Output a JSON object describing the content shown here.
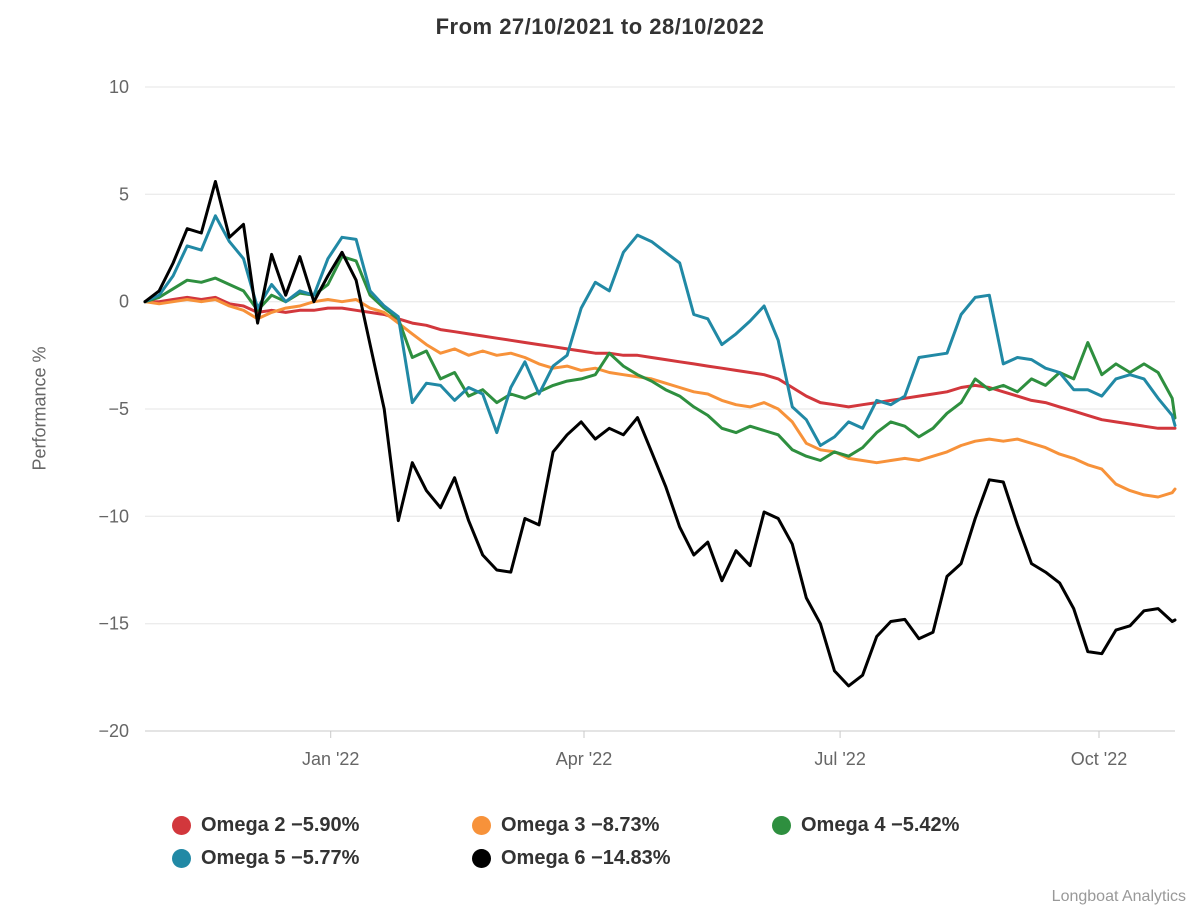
{
  "credits": "Longboat Analytics",
  "chart_data": {
    "type": "line",
    "title": "From 27/10/2021 to 28/10/2022",
    "xlabel": "",
    "ylabel": "Performance %",
    "ylim": [
      -20,
      10
    ],
    "grid": true,
    "legend_position": "bottom",
    "grid_color": "#e6e6e6",
    "axis_color": "#c9c9c9",
    "tick_text_color": "#666666",
    "yticks": [
      10,
      5,
      0,
      -5,
      -10,
      -15,
      -20
    ],
    "ytick_labels": [
      "10",
      "5",
      "0",
      "−5",
      "−10",
      "−15",
      "−20"
    ],
    "x_unit": "days since 27/10/2021",
    "x_range_days": [
      0,
      366
    ],
    "xticks": [
      {
        "day": 66,
        "label": "Jan '22"
      },
      {
        "day": 156,
        "label": "Apr '22"
      },
      {
        "day": 247,
        "label": "Jul '22"
      },
      {
        "day": 339,
        "label": "Oct '22"
      }
    ],
    "x_days": [
      0,
      5,
      10,
      15,
      20,
      25,
      30,
      35,
      40,
      45,
      50,
      55,
      60,
      65,
      70,
      75,
      80,
      85,
      90,
      95,
      100,
      105,
      110,
      115,
      120,
      125,
      130,
      135,
      140,
      145,
      150,
      155,
      160,
      165,
      170,
      175,
      180,
      185,
      190,
      195,
      200,
      205,
      210,
      215,
      220,
      225,
      230,
      235,
      240,
      245,
      250,
      255,
      260,
      265,
      270,
      275,
      280,
      285,
      290,
      295,
      300,
      305,
      310,
      315,
      320,
      325,
      330,
      335,
      340,
      345,
      350,
      355,
      360,
      365,
      366
    ],
    "series": [
      {
        "name": "Omega 2",
        "final_value": -5.9,
        "final_value_label": "−5.90%",
        "color": "#d2373c",
        "values": [
          0,
          0,
          0.1,
          0.2,
          0.1,
          0.2,
          -0.1,
          -0.2,
          -0.5,
          -0.4,
          -0.5,
          -0.4,
          -0.4,
          -0.3,
          -0.3,
          -0.4,
          -0.5,
          -0.6,
          -0.8,
          -1,
          -1.1,
          -1.3,
          -1.4,
          -1.5,
          -1.6,
          -1.7,
          -1.8,
          -1.9,
          -2,
          -2.1,
          -2.2,
          -2.3,
          -2.4,
          -2.4,
          -2.5,
          -2.5,
          -2.6,
          -2.7,
          -2.8,
          -2.9,
          -3,
          -3.1,
          -3.2,
          -3.3,
          -3.4,
          -3.6,
          -4,
          -4.4,
          -4.7,
          -4.8,
          -4.9,
          -4.8,
          -4.7,
          -4.6,
          -4.5,
          -4.4,
          -4.3,
          -4.2,
          -4,
          -3.9,
          -4,
          -4.2,
          -4.4,
          -4.6,
          -4.7,
          -4.9,
          -5.1,
          -5.3,
          -5.5,
          -5.6,
          -5.7,
          -5.8,
          -5.9,
          -5.9,
          -5.9
        ]
      },
      {
        "name": "Omega 3",
        "final_value": -8.73,
        "final_value_label": "−8.73%",
        "color": "#f7923a",
        "values": [
          0,
          -0.1,
          0,
          0.1,
          0,
          0.1,
          -0.2,
          -0.4,
          -0.8,
          -0.5,
          -0.3,
          -0.2,
          0,
          0.1,
          0,
          0.1,
          -0.3,
          -0.5,
          -1,
          -1.5,
          -2,
          -2.4,
          -2.2,
          -2.5,
          -2.3,
          -2.5,
          -2.4,
          -2.6,
          -2.9,
          -3.1,
          -3,
          -3.2,
          -3.1,
          -3.3,
          -3.4,
          -3.5,
          -3.6,
          -3.8,
          -4,
          -4.2,
          -4.3,
          -4.6,
          -4.8,
          -4.9,
          -4.7,
          -5,
          -5.6,
          -6.6,
          -6.9,
          -7,
          -7.3,
          -7.4,
          -7.5,
          -7.4,
          -7.3,
          -7.4,
          -7.2,
          -7,
          -6.7,
          -6.5,
          -6.4,
          -6.5,
          -6.4,
          -6.6,
          -6.8,
          -7.1,
          -7.3,
          -7.6,
          -7.8,
          -8.5,
          -8.8,
          -9,
          -9.1,
          -8.9,
          -8.73
        ]
      },
      {
        "name": "Omega 4",
        "final_value": -5.42,
        "final_value_label": "−5.42%",
        "color": "#2e8f3f",
        "values": [
          0,
          0.2,
          0.6,
          1,
          0.9,
          1.1,
          0.8,
          0.5,
          -0.4,
          0.3,
          0,
          0.4,
          0.3,
          0.8,
          2.1,
          1.9,
          0.3,
          -0.3,
          -0.8,
          -2.6,
          -2.3,
          -3.6,
          -3.3,
          -4.4,
          -4.1,
          -4.7,
          -4.3,
          -4.5,
          -4.2,
          -3.9,
          -3.7,
          -3.6,
          -3.4,
          -2.4,
          -3,
          -3.4,
          -3.7,
          -4.1,
          -4.4,
          -4.9,
          -5.3,
          -5.9,
          -6.1,
          -5.8,
          -6,
          -6.2,
          -6.9,
          -7.2,
          -7.4,
          -7,
          -7.2,
          -6.8,
          -6.1,
          -5.6,
          -5.8,
          -6.3,
          -5.9,
          -5.2,
          -4.7,
          -3.6,
          -4.1,
          -3.9,
          -4.2,
          -3.6,
          -3.9,
          -3.3,
          -3.6,
          -1.9,
          -3.4,
          -2.9,
          -3.3,
          -2.9,
          -3.3,
          -4.5,
          -5.42
        ]
      },
      {
        "name": "Omega 5",
        "final_value": -5.77,
        "final_value_label": "−5.77%",
        "color": "#2189a5",
        "values": [
          0,
          0.3,
          1.2,
          2.6,
          2.4,
          4,
          2.8,
          2,
          -0.3,
          0.8,
          0,
          0.5,
          0.3,
          2,
          3,
          2.9,
          0.5,
          -0.2,
          -0.7,
          -4.7,
          -3.8,
          -3.9,
          -4.6,
          -4,
          -4.3,
          -6.1,
          -4,
          -2.8,
          -4.3,
          -3,
          -2.5,
          -0.3,
          0.9,
          0.5,
          2.3,
          3.1,
          2.8,
          2.3,
          1.8,
          -0.6,
          -0.8,
          -2,
          -1.5,
          -0.9,
          -0.2,
          -1.8,
          -4.9,
          -5.5,
          -6.7,
          -6.3,
          -5.6,
          -5.9,
          -4.6,
          -4.8,
          -4.4,
          -2.6,
          -2.5,
          -2.4,
          -0.6,
          0.2,
          0.3,
          -2.9,
          -2.6,
          -2.7,
          -3.1,
          -3.3,
          -4.1,
          -4.1,
          -4.4,
          -3.6,
          -3.4,
          -3.6,
          -4.5,
          -5.3,
          -5.77
        ]
      },
      {
        "name": "Omega 6",
        "final_value": -14.83,
        "final_value_label": "−14.83%",
        "color": "#000000",
        "values": [
          0,
          0.5,
          1.8,
          3.4,
          3.2,
          5.6,
          3,
          3.6,
          -1,
          2.2,
          0.3,
          2.1,
          0,
          1.2,
          2.3,
          1,
          -2,
          -5,
          -10.2,
          -7.5,
          -8.8,
          -9.6,
          -8.2,
          -10.2,
          -11.8,
          -12.5,
          -12.6,
          -10.1,
          -10.4,
          -7,
          -6.2,
          -5.6,
          -6.4,
          -5.9,
          -6.2,
          -5.4,
          -7,
          -8.6,
          -10.5,
          -11.8,
          -11.2,
          -13,
          -11.6,
          -12.3,
          -9.8,
          -10.1,
          -11.3,
          -13.8,
          -15,
          -17.2,
          -17.9,
          -17.4,
          -15.6,
          -14.9,
          -14.8,
          -15.7,
          -15.4,
          -12.8,
          -12.2,
          -10.1,
          -8.3,
          -8.4,
          -10.4,
          -12.2,
          -12.6,
          -13.1,
          -14.3,
          -16.3,
          -16.4,
          -15.3,
          -15.1,
          -14.4,
          -14.3,
          -14.9,
          -14.83
        ]
      }
    ]
  }
}
